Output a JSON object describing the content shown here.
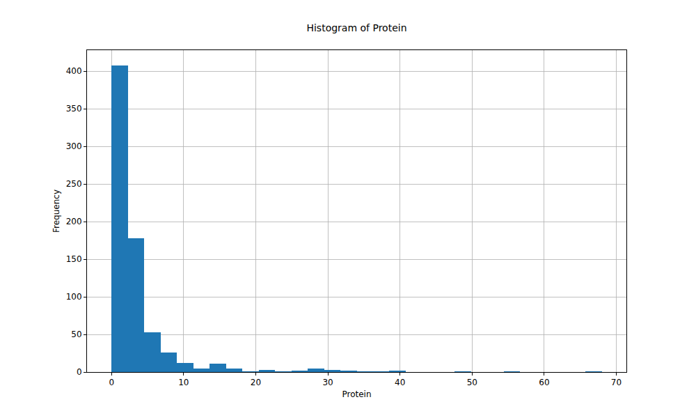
{
  "chart_data": {
    "type": "histogram",
    "title": "Histogram of Protein",
    "x_label": "Protein",
    "y_label": "Frequency",
    "bins": [
      0,
      2.27,
      4.53,
      6.8,
      9.07,
      11.33,
      13.6,
      15.87,
      18.13,
      20.4,
      22.67,
      24.93,
      27.2,
      29.47,
      31.73,
      34,
      36.27,
      38.53,
      40.8,
      43.07,
      45.33,
      47.6,
      49.87,
      52.13,
      54.4,
      56.67,
      58.93,
      61.2,
      63.47,
      65.73,
      68
    ],
    "values": [
      408,
      178,
      53,
      26,
      12,
      5,
      11,
      5,
      1,
      3,
      1,
      2,
      5,
      3,
      2,
      1,
      1,
      2,
      0,
      0,
      0,
      1,
      0,
      0,
      1,
      0,
      0,
      0,
      0,
      1
    ],
    "color": "#1f77b4",
    "xlim": [
      -3.4,
      71.4
    ],
    "xticks": [
      0,
      10,
      20,
      30,
      40,
      50,
      60,
      70
    ],
    "ylim": [
      0,
      428
    ],
    "yticks": [
      0,
      50,
      100,
      150,
      200,
      250,
      300,
      350,
      400
    ],
    "grid": true
  }
}
